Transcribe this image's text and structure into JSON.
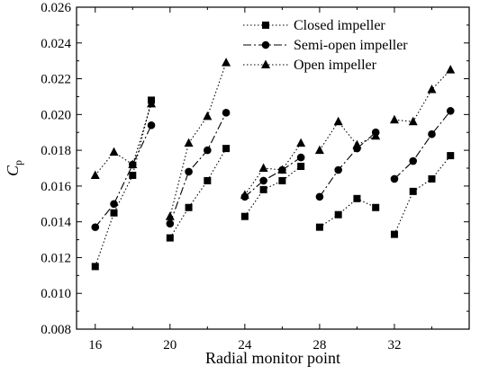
{
  "chart_data": {
    "type": "line",
    "xlabel": "Radial monitor point",
    "ylabel": "C",
    "ylabel_subscript": "p",
    "xlim": [
      15,
      36
    ],
    "ylim": [
      0.008,
      0.026
    ],
    "xticks": [
      16,
      20,
      24,
      28,
      32
    ],
    "yticks": [
      0.008,
      0.01,
      0.012,
      0.014,
      0.016,
      0.018,
      0.02,
      0.022,
      0.024,
      0.026
    ],
    "ytick_labels": [
      "0.008",
      "0.010",
      "0.012",
      "0.014",
      "0.016",
      "0.018",
      "0.020",
      "0.022",
      "0.024",
      "0.026"
    ],
    "grid": false,
    "legend_position": "top-right",
    "groups": [
      [
        16,
        17,
        18,
        19
      ],
      [
        20,
        21,
        22,
        23
      ],
      [
        24,
        25,
        26,
        27
      ],
      [
        28,
        29,
        30,
        31
      ],
      [
        32,
        33,
        34,
        35
      ]
    ],
    "series": [
      {
        "name": "Closed impeller",
        "marker": "square",
        "dash": "dotted",
        "points": [
          [
            16,
            0.0115
          ],
          [
            17,
            0.0145
          ],
          [
            18,
            0.0166
          ],
          [
            19,
            0.0208
          ],
          [
            20,
            0.0131
          ],
          [
            21,
            0.0148
          ],
          [
            22,
            0.0163
          ],
          [
            23,
            0.0181
          ],
          [
            24,
            0.0143
          ],
          [
            25,
            0.0158
          ],
          [
            26,
            0.0163
          ],
          [
            27,
            0.0171
          ],
          [
            28,
            0.0137
          ],
          [
            29,
            0.0144
          ],
          [
            30,
            0.0153
          ],
          [
            31,
            0.0148
          ],
          [
            32,
            0.0133
          ],
          [
            33,
            0.0157
          ],
          [
            34,
            0.0164
          ],
          [
            35,
            0.0177
          ]
        ]
      },
      {
        "name": "Semi-open impeller",
        "marker": "circle",
        "dash": "dashdot",
        "points": [
          [
            16,
            0.0137
          ],
          [
            17,
            0.015
          ],
          [
            18,
            0.0172
          ],
          [
            19,
            0.0194
          ],
          [
            20,
            0.0139
          ],
          [
            21,
            0.0168
          ],
          [
            22,
            0.018
          ],
          [
            23,
            0.0201
          ],
          [
            24,
            0.0154
          ],
          [
            25,
            0.0163
          ],
          [
            26,
            0.0169
          ],
          [
            27,
            0.0176
          ],
          [
            28,
            0.0154
          ],
          [
            29,
            0.0169
          ],
          [
            30,
            0.0181
          ],
          [
            31,
            0.019
          ],
          [
            32,
            0.0164
          ],
          [
            33,
            0.0174
          ],
          [
            34,
            0.0189
          ],
          [
            35,
            0.0202
          ]
        ]
      },
      {
        "name": "Open impeller",
        "marker": "triangle",
        "dash": "dotted",
        "points": [
          [
            16,
            0.0166
          ],
          [
            17,
            0.0179
          ],
          [
            18,
            0.0172
          ],
          [
            19,
            0.0206
          ],
          [
            20,
            0.0143
          ],
          [
            21,
            0.0184
          ],
          [
            22,
            0.0199
          ],
          [
            23,
            0.0229
          ],
          [
            24,
            0.0155
          ],
          [
            25,
            0.017
          ],
          [
            26,
            0.0169
          ],
          [
            27,
            0.0184
          ],
          [
            28,
            0.018
          ],
          [
            29,
            0.0196
          ],
          [
            30,
            0.0183
          ],
          [
            31,
            0.0188
          ],
          [
            32,
            0.0197
          ],
          [
            33,
            0.0196
          ],
          [
            34,
            0.0214
          ],
          [
            35,
            0.0225
          ]
        ]
      }
    ]
  }
}
